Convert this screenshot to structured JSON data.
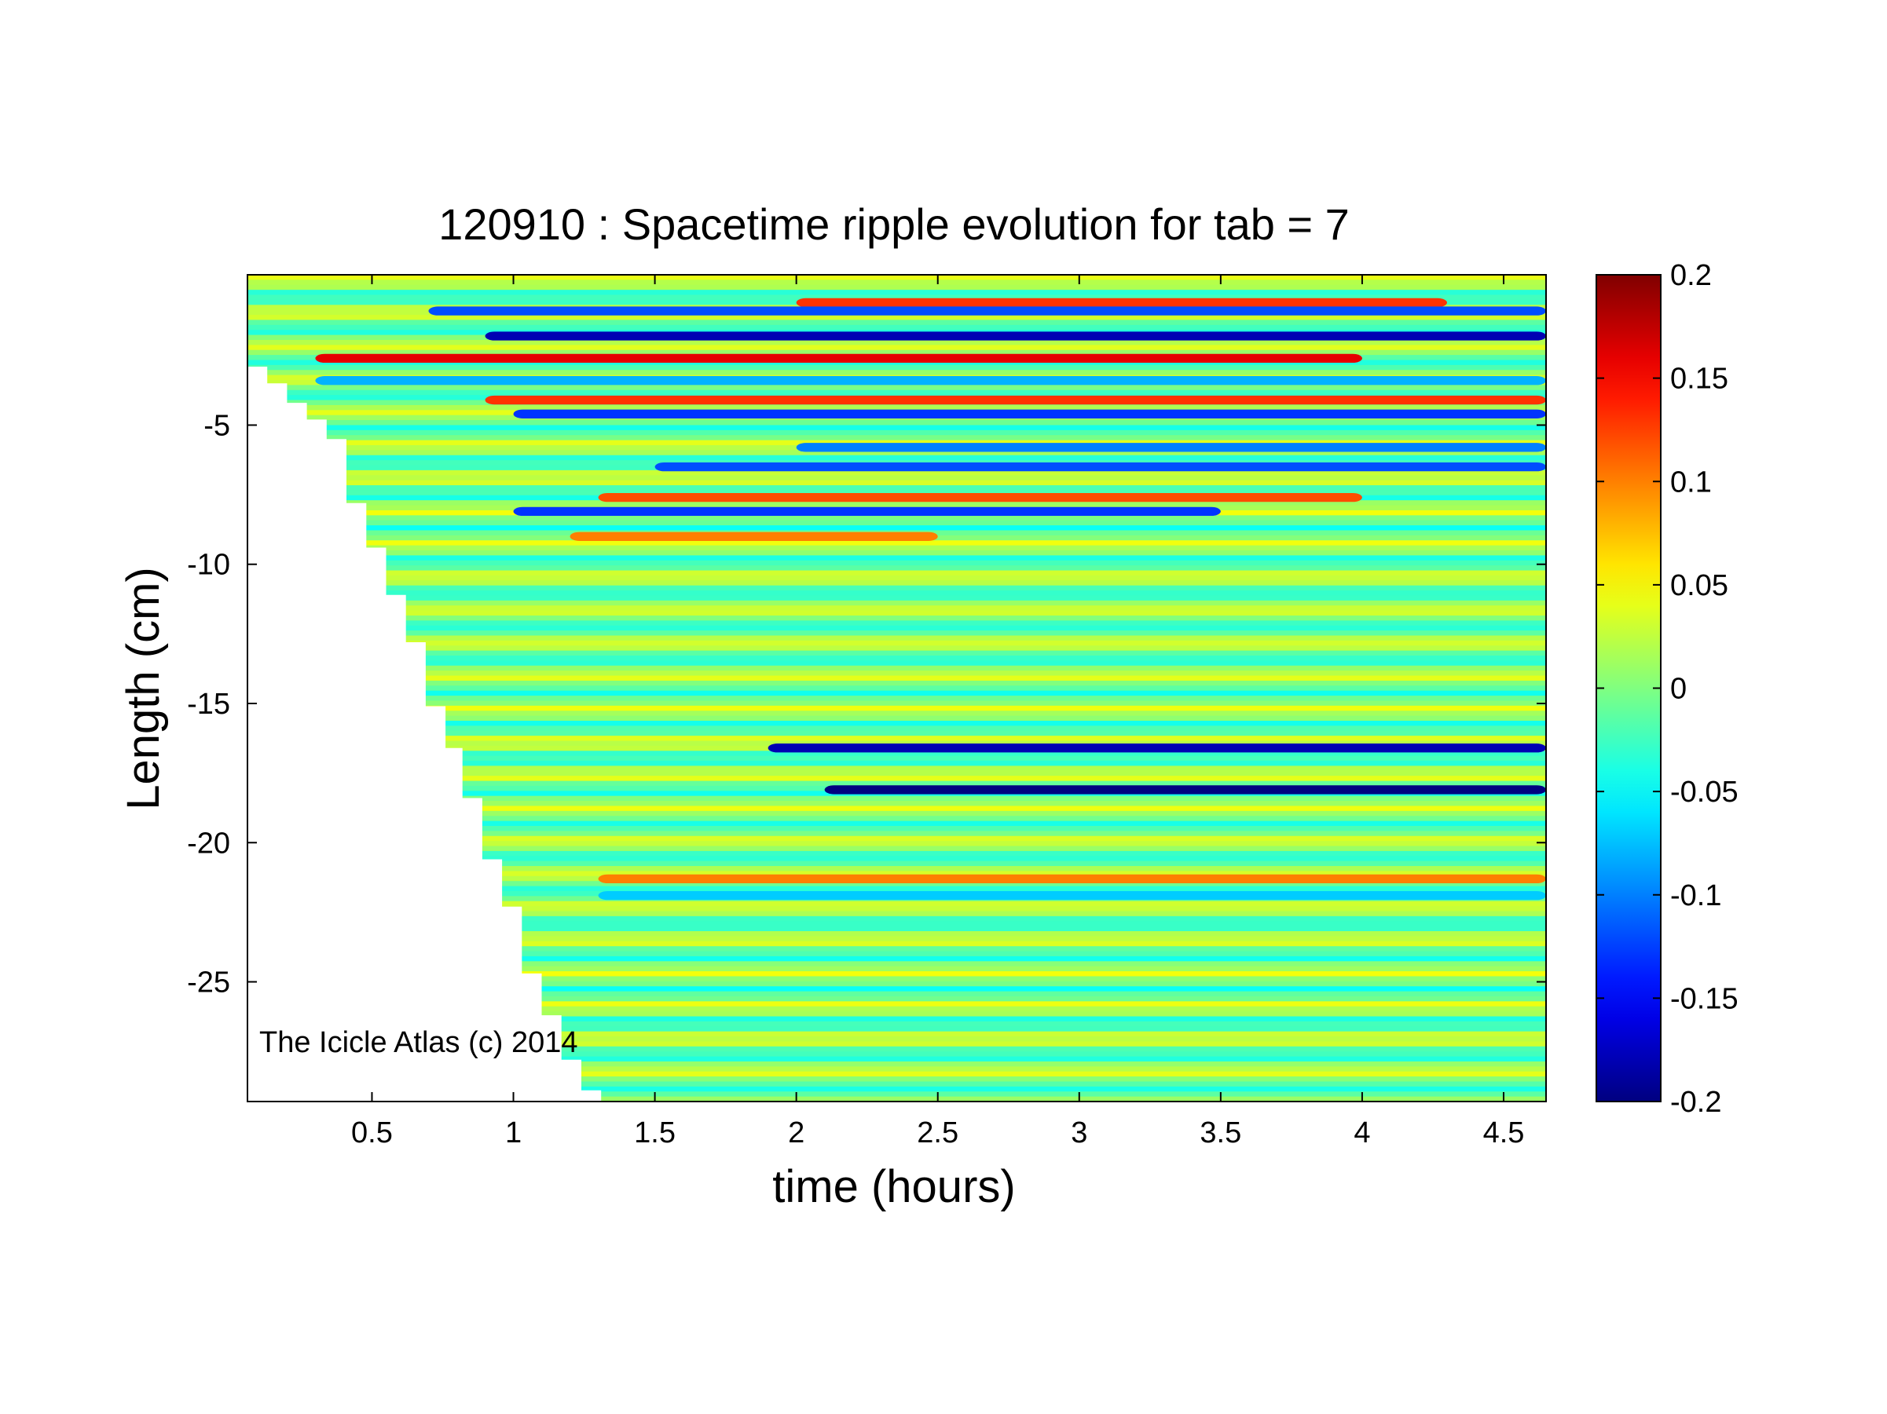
{
  "chart_data": {
    "type": "heatmap",
    "title": "120910 : Spacetime ripple evolution for tab = 7",
    "xlabel": "time (hours)",
    "ylabel": "Length (cm)",
    "xlim": [
      0.06,
      4.65
    ],
    "ylim": [
      -29.3,
      0.4
    ],
    "xticks": [
      0.5,
      1,
      1.5,
      2,
      2.5,
      3,
      3.5,
      4,
      4.5
    ],
    "xtick_labels": [
      "0.5",
      "1",
      "1.5",
      "2",
      "2.5",
      "3",
      "3.5",
      "4",
      "4.5"
    ],
    "yticks": [
      -5,
      -10,
      -15,
      -20,
      -25
    ],
    "ytick_labels": [
      "-5",
      "-10",
      "-15",
      "-20",
      "-25"
    ],
    "colormap": "jet",
    "clim": [
      -0.2,
      0.2
    ],
    "colorbar_ticks": [
      0.2,
      0.15,
      0.1,
      0.05,
      0,
      -0.05,
      -0.1,
      -0.15,
      -0.2
    ],
    "colorbar_tick_labels": [
      "0.2",
      "0.15",
      "0.1",
      "0.05",
      "0",
      "-0.05",
      "-0.1",
      "-0.15",
      "-0.2"
    ],
    "grid": false,
    "front_boundary": [
      [
        0.06,
        -1.6
      ],
      [
        0.13,
        -2.9
      ],
      [
        0.2,
        -3.5
      ],
      [
        0.27,
        -4.2
      ],
      [
        0.34,
        -4.8
      ],
      [
        0.41,
        -5.5
      ],
      [
        0.48,
        -7.8
      ],
      [
        0.55,
        -9.4
      ],
      [
        0.62,
        -11.1
      ],
      [
        0.69,
        -12.8
      ],
      [
        0.76,
        -15.1
      ],
      [
        0.82,
        -16.6
      ],
      [
        0.89,
        -18.4
      ],
      [
        0.96,
        -20.6
      ],
      [
        1.03,
        -22.3
      ],
      [
        1.1,
        -24.7
      ],
      [
        1.17,
        -26.2
      ],
      [
        1.24,
        -27.8
      ],
      [
        1.31,
        -28.9
      ],
      [
        1.37,
        -29.3
      ]
    ],
    "notable_bands": [
      {
        "length": -0.6,
        "value": 0.13,
        "t_start": 2.0,
        "t_end": 4.3
      },
      {
        "length": -0.9,
        "value": -0.12,
        "t_start": 0.7,
        "t_end": 4.65
      },
      {
        "length": -1.8,
        "value": -0.18,
        "t_start": 0.9,
        "t_end": 4.65
      },
      {
        "length": -2.6,
        "value": 0.16,
        "t_start": 0.3,
        "t_end": 4.0
      },
      {
        "length": -3.4,
        "value": -0.08,
        "t_start": 0.3,
        "t_end": 4.65
      },
      {
        "length": -4.1,
        "value": 0.13,
        "t_start": 0.9,
        "t_end": 4.65
      },
      {
        "length": -4.6,
        "value": -0.13,
        "t_start": 1.0,
        "t_end": 4.65
      },
      {
        "length": -5.8,
        "value": -0.1,
        "t_start": 2.0,
        "t_end": 4.65
      },
      {
        "length": -6.5,
        "value": -0.12,
        "t_start": 1.5,
        "t_end": 4.65
      },
      {
        "length": -7.6,
        "value": 0.12,
        "t_start": 1.3,
        "t_end": 4.0
      },
      {
        "length": -8.1,
        "value": -0.13,
        "t_start": 1.0,
        "t_end": 3.5
      },
      {
        "length": -9.0,
        "value": 0.1,
        "t_start": 1.2,
        "t_end": 2.5
      },
      {
        "length": -16.6,
        "value": -0.18,
        "t_start": 1.9,
        "t_end": 4.65
      },
      {
        "length": -18.1,
        "value": -0.2,
        "t_start": 2.1,
        "t_end": 4.65
      },
      {
        "length": -21.3,
        "value": 0.1,
        "t_start": 1.3,
        "t_end": 4.65
      },
      {
        "length": -21.9,
        "value": -0.07,
        "t_start": 1.3,
        "t_end": 4.65
      }
    ]
  },
  "annotation": "The Icicle Atlas (c) 2014"
}
